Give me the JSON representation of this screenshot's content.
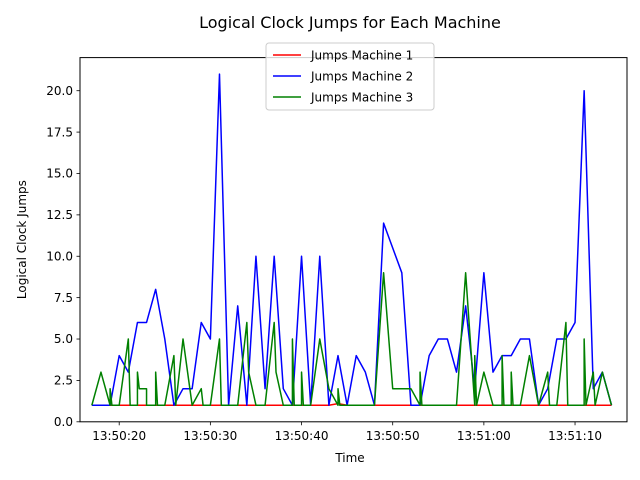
{
  "chart_data": {
    "type": "line",
    "title": "Logical Clock Jumps for Each Machine",
    "xlabel": "Time",
    "ylabel": "Logical Clock Jumps",
    "xlim": [
      "13:50:15.7",
      "13:51:15.7"
    ],
    "ylim": [
      0,
      22
    ],
    "grid": false,
    "legend_position": "top-center",
    "x_ticks": [
      "13:50:20",
      "13:50:30",
      "13:50:40",
      "13:50:50",
      "13:51:00",
      "13:51:10"
    ],
    "y_ticks": [
      "0.0",
      "2.5",
      "5.0",
      "7.5",
      "10.0",
      "12.5",
      "15.0",
      "17.5",
      "20.0"
    ],
    "series": [
      {
        "name": "Jumps Machine 1",
        "color": "#ff0000",
        "points": [
          [
            "13:50:17.0",
            1
          ],
          [
            "13:50:30.0",
            1
          ],
          [
            "13:50:43.0",
            1
          ],
          [
            "13:50:44.0",
            1.1
          ],
          [
            "13:50:45.0",
            1
          ],
          [
            "13:50:50.0",
            1
          ],
          [
            "13:51:00.0",
            1
          ],
          [
            "13:51:14.0",
            1
          ]
        ]
      },
      {
        "name": "Jumps Machine 2",
        "color": "#0000ff",
        "points": [
          [
            "13:50:17.0",
            1
          ],
          [
            "13:50:19.0",
            1
          ],
          [
            "13:50:20.0",
            4
          ],
          [
            "13:50:21.0",
            3
          ],
          [
            "13:50:22.0",
            6
          ],
          [
            "13:50:23.0",
            6
          ],
          [
            "13:50:24.0",
            8
          ],
          [
            "13:50:25.0",
            5
          ],
          [
            "13:50:26.0",
            1
          ],
          [
            "13:50:27.0",
            2
          ],
          [
            "13:50:28.0",
            2
          ],
          [
            "13:50:29.0",
            6
          ],
          [
            "13:50:30.0",
            5
          ],
          [
            "13:50:30.5",
            13
          ],
          [
            "13:50:31.0",
            21
          ],
          [
            "13:50:32.0",
            1
          ],
          [
            "13:50:33.0",
            7
          ],
          [
            "13:50:34.0",
            1
          ],
          [
            "13:50:35.0",
            10
          ],
          [
            "13:50:36.0",
            2
          ],
          [
            "13:50:37.0",
            10
          ],
          [
            "13:50:38.0",
            2
          ],
          [
            "13:50:39.0",
            1
          ],
          [
            "13:50:40.0",
            10
          ],
          [
            "13:50:41.0",
            1
          ],
          [
            "13:50:42.0",
            10
          ],
          [
            "13:50:43.0",
            1
          ],
          [
            "13:50:44.0",
            4
          ],
          [
            "13:50:45.0",
            1
          ],
          [
            "13:50:46.0",
            4
          ],
          [
            "13:50:47.0",
            3
          ],
          [
            "13:50:48.0",
            1
          ],
          [
            "13:50:49.0",
            12
          ],
          [
            "13:50:51.0",
            9
          ],
          [
            "13:50:52.0",
            1
          ],
          [
            "13:50:53.0",
            1
          ],
          [
            "13:50:54.0",
            4
          ],
          [
            "13:50:55.0",
            5
          ],
          [
            "13:50:56.0",
            5
          ],
          [
            "13:50:57.0",
            3
          ],
          [
            "13:50:58.0",
            7
          ],
          [
            "13:50:59.0",
            2
          ],
          [
            "13:51:00.0",
            9
          ],
          [
            "13:51:01.0",
            3
          ],
          [
            "13:51:02.0",
            4
          ],
          [
            "13:51:03.0",
            4
          ],
          [
            "13:51:04.0",
            5
          ],
          [
            "13:51:05.0",
            5
          ],
          [
            "13:51:06.0",
            1
          ],
          [
            "13:51:07.0",
            2
          ],
          [
            "13:51:08.0",
            5
          ],
          [
            "13:51:09.0",
            5
          ],
          [
            "13:51:10.0",
            6
          ],
          [
            "13:51:11.0",
            20
          ],
          [
            "13:51:12.0",
            2
          ],
          [
            "13:51:13.0",
            3
          ],
          [
            "13:51:14.0",
            1
          ]
        ]
      },
      {
        "name": "Jumps Machine 3",
        "color": "#008000",
        "points": [
          [
            "13:50:17.0",
            1
          ],
          [
            "13:50:18.0",
            3
          ],
          [
            "13:50:19.0",
            1
          ],
          [
            "13:50:19.0",
            2
          ],
          [
            "13:50:19.2",
            1
          ],
          [
            "13:50:20.0",
            1
          ],
          [
            "13:50:21.0",
            5
          ],
          [
            "13:50:21.2",
            1
          ],
          [
            "13:50:22.0",
            1
          ],
          [
            "13:50:22.0",
            3
          ],
          [
            "13:50:22.2",
            2
          ],
          [
            "13:50:23.0",
            2
          ],
          [
            "13:50:23.0",
            1
          ],
          [
            "13:50:24.0",
            1
          ],
          [
            "13:50:24.0",
            3
          ],
          [
            "13:50:24.2",
            1
          ],
          [
            "13:50:25.0",
            1
          ],
          [
            "13:50:26.0",
            4
          ],
          [
            "13:50:26.2",
            1
          ],
          [
            "13:50:27.0",
            5
          ],
          [
            "13:50:28.0",
            1
          ],
          [
            "13:50:29.0",
            2
          ],
          [
            "13:50:29.2",
            1
          ],
          [
            "13:50:30.0",
            1
          ],
          [
            "13:50:31.0",
            5
          ],
          [
            "13:50:31.2",
            1
          ],
          [
            "13:50:33.0",
            1
          ],
          [
            "13:50:34.0",
            6
          ],
          [
            "13:50:34.2",
            3
          ],
          [
            "13:50:35.0",
            1
          ],
          [
            "13:50:36.0",
            1
          ],
          [
            "13:50:37.0",
            6
          ],
          [
            "13:50:37.2",
            3
          ],
          [
            "13:50:38.0",
            1
          ],
          [
            "13:50:39.0",
            1
          ],
          [
            "13:50:39.0",
            5
          ],
          [
            "13:50:39.2",
            1
          ],
          [
            "13:50:40.0",
            1
          ],
          [
            "13:50:40.0",
            3
          ],
          [
            "13:50:40.2",
            1
          ],
          [
            "13:50:41.0",
            1
          ],
          [
            "13:50:42.0",
            5
          ],
          [
            "13:50:43.0",
            2
          ],
          [
            "13:50:44.0",
            1
          ],
          [
            "13:50:44.0",
            2
          ],
          [
            "13:50:44.2",
            1
          ],
          [
            "13:50:48.0",
            1
          ],
          [
            "13:50:49.0",
            9
          ],
          [
            "13:50:50.0",
            2
          ],
          [
            "13:50:52.0",
            2
          ],
          [
            "13:50:53.0",
            1
          ],
          [
            "13:50:53.0",
            3
          ],
          [
            "13:50:53.2",
            1
          ],
          [
            "13:50:57.0",
            1
          ],
          [
            "13:50:58.0",
            9
          ],
          [
            "13:50:59.0",
            1
          ],
          [
            "13:50:59.0",
            4
          ],
          [
            "13:50:59.2",
            1
          ],
          [
            "13:51:00.0",
            3
          ],
          [
            "13:51:01.0",
            1
          ],
          [
            "13:51:02.0",
            1
          ],
          [
            "13:51:02.0",
            4
          ],
          [
            "13:51:02.2",
            1
          ],
          [
            "13:51:03.0",
            1
          ],
          [
            "13:51:03.0",
            3
          ],
          [
            "13:51:03.2",
            1
          ],
          [
            "13:51:04.0",
            1
          ],
          [
            "13:51:05.0",
            4
          ],
          [
            "13:51:06.0",
            1
          ],
          [
            "13:51:07.0",
            3
          ],
          [
            "13:51:07.2",
            1
          ],
          [
            "13:51:08.0",
            1
          ],
          [
            "13:51:09.0",
            6
          ],
          [
            "13:51:09.2",
            1
          ],
          [
            "13:51:11.0",
            1
          ],
          [
            "13:51:11.0",
            5
          ],
          [
            "13:51:11.2",
            1
          ],
          [
            "13:51:12.0",
            3
          ],
          [
            "13:51:12.2",
            1
          ],
          [
            "13:51:13.0",
            3
          ],
          [
            "13:51:14.0",
            1
          ]
        ]
      }
    ]
  }
}
